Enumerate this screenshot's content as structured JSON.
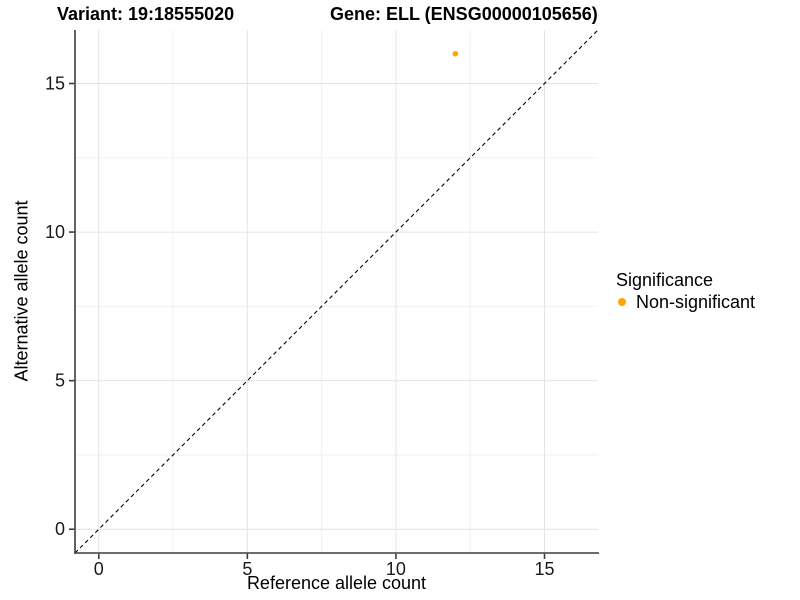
{
  "titles": {
    "variant": "Variant: 19:18555020",
    "gene": "Gene: ELL (ENSG00000105656)"
  },
  "chart_data": {
    "type": "scatter",
    "title": "Variant: 19:18555020   Gene: ELL (ENSG00000105656)",
    "xlabel": "Reference allele count",
    "ylabel": "Alternative allele count",
    "xlim": [
      -0.8,
      16.8
    ],
    "ylim": [
      -0.8,
      16.8
    ],
    "xticks": [
      0,
      5,
      10,
      15
    ],
    "yticks": [
      0,
      5,
      10,
      15
    ],
    "minor_gridlines": [
      2.5,
      7.5,
      12.5
    ],
    "grid": "major and minor gridlines on, white background",
    "series": [
      {
        "name": "Non-significant",
        "points": [
          {
            "x": 12,
            "y": 16
          }
        ]
      }
    ],
    "reference_line": {
      "slope": 1,
      "intercept": 0,
      "style": "dashed",
      "color": "#000000"
    },
    "legend": {
      "title": "Significance",
      "position": "right",
      "items": [
        {
          "label": "Non-significant",
          "color": "#FFA500"
        }
      ]
    }
  },
  "colors": {
    "point": "#FFA500",
    "grid_major": "#E4E4E4",
    "grid_minor": "#F1F1F1",
    "axis_line": "#3C3C3C",
    "tick_text": "#1a1a1a",
    "dashed_line": "#000000",
    "background": "#FFFFFF"
  }
}
